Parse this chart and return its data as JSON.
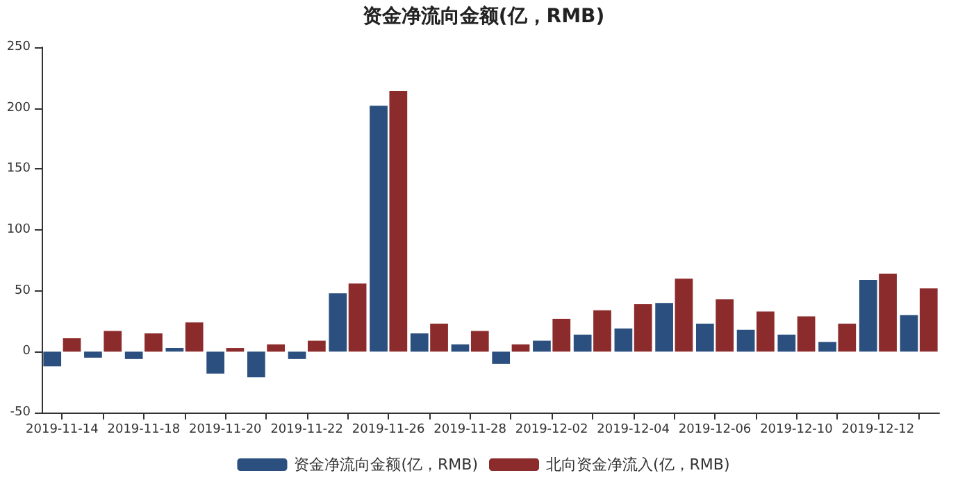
{
  "chart_data": {
    "type": "bar",
    "title": "资金净流向金额(亿，RMB)",
    "categories": [
      "2019-11-14",
      null,
      "2019-11-18",
      null,
      "2019-11-20",
      null,
      "2019-11-22",
      null,
      "2019-11-26",
      null,
      "2019-11-28",
      null,
      "2019-12-02",
      null,
      "2019-12-04",
      null,
      "2019-12-06",
      null,
      "2019-12-10",
      null,
      "2019-12-12",
      null
    ],
    "series": [
      {
        "name": "资金净流向金额(亿，RMB)",
        "color": "#2b4f7e",
        "values": [
          -12,
          -5,
          -6,
          3,
          -18,
          -21,
          -6,
          48,
          202,
          15,
          6,
          -10,
          9,
          14,
          19,
          40,
          23,
          18,
          14,
          8,
          59,
          30
        ]
      },
      {
        "name": "北向资金净流入(亿，RMB)",
        "color": "#8c2b2b",
        "values": [
          11,
          17,
          15,
          24,
          3,
          6,
          9,
          56,
          214,
          23,
          17,
          6,
          27,
          34,
          39,
          60,
          43,
          33,
          29,
          23,
          64,
          52
        ]
      }
    ],
    "ylim": [
      -50,
      250
    ],
    "yticks": [
      -50,
      0,
      50,
      100,
      150,
      200,
      250
    ],
    "grid": false,
    "legend": "bottom"
  }
}
